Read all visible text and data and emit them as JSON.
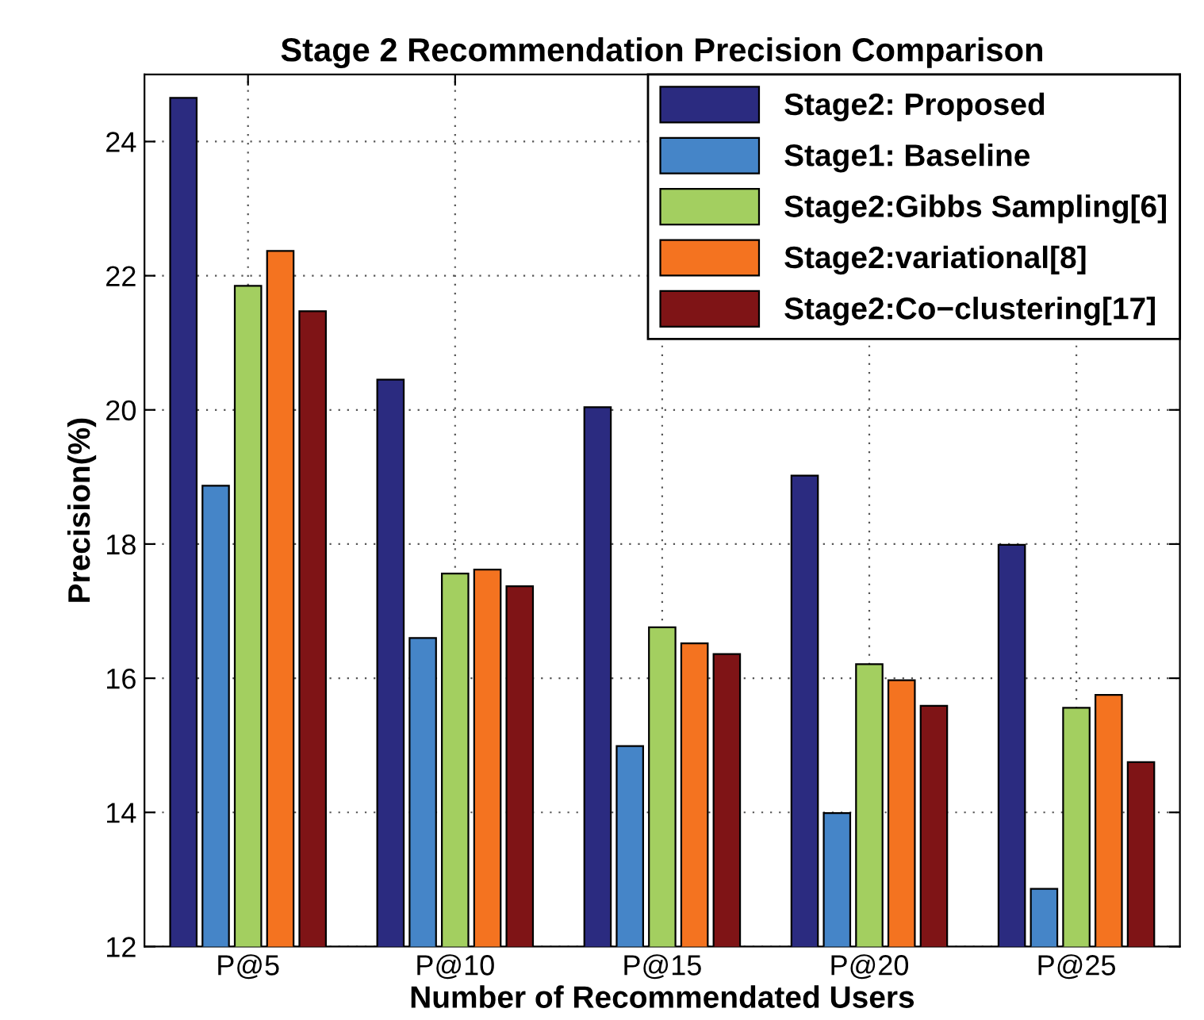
{
  "chart_data": {
    "type": "bar",
    "title": "Stage 2 Recommendation Precision Comparison",
    "xlabel": "Number of Recommendated Users",
    "ylabel": "Precision(%)",
    "categories": [
      "P@5",
      "P@10",
      "P@15",
      "P@20",
      "P@25"
    ],
    "series": [
      {
        "name": "Stage2: Proposed",
        "color": "#2b2b80",
        "values": [
          24.65,
          20.45,
          20.04,
          19.02,
          17.99
        ]
      },
      {
        "name": "Stage1: Baseline",
        "color": "#4585c8",
        "values": [
          18.87,
          16.6,
          14.99,
          13.99,
          12.86
        ]
      },
      {
        "name": "Stage2:Gibbs Sampling[6]",
        "color": "#a3cf60",
        "values": [
          21.85,
          17.56,
          16.76,
          16.21,
          15.56
        ]
      },
      {
        "name": "Stage2:variational[8]",
        "color": "#f47320",
        "values": [
          22.37,
          17.62,
          16.52,
          15.97,
          15.75
        ]
      },
      {
        "name": "Stage2:Co−clustering[17]",
        "color": "#7f1416",
        "values": [
          21.47,
          17.37,
          16.36,
          15.59,
          14.75
        ]
      }
    ],
    "ylim": [
      12,
      25
    ],
    "yticks": [
      12,
      14,
      16,
      18,
      20,
      22,
      24
    ],
    "grid": true,
    "legend": "top right"
  }
}
